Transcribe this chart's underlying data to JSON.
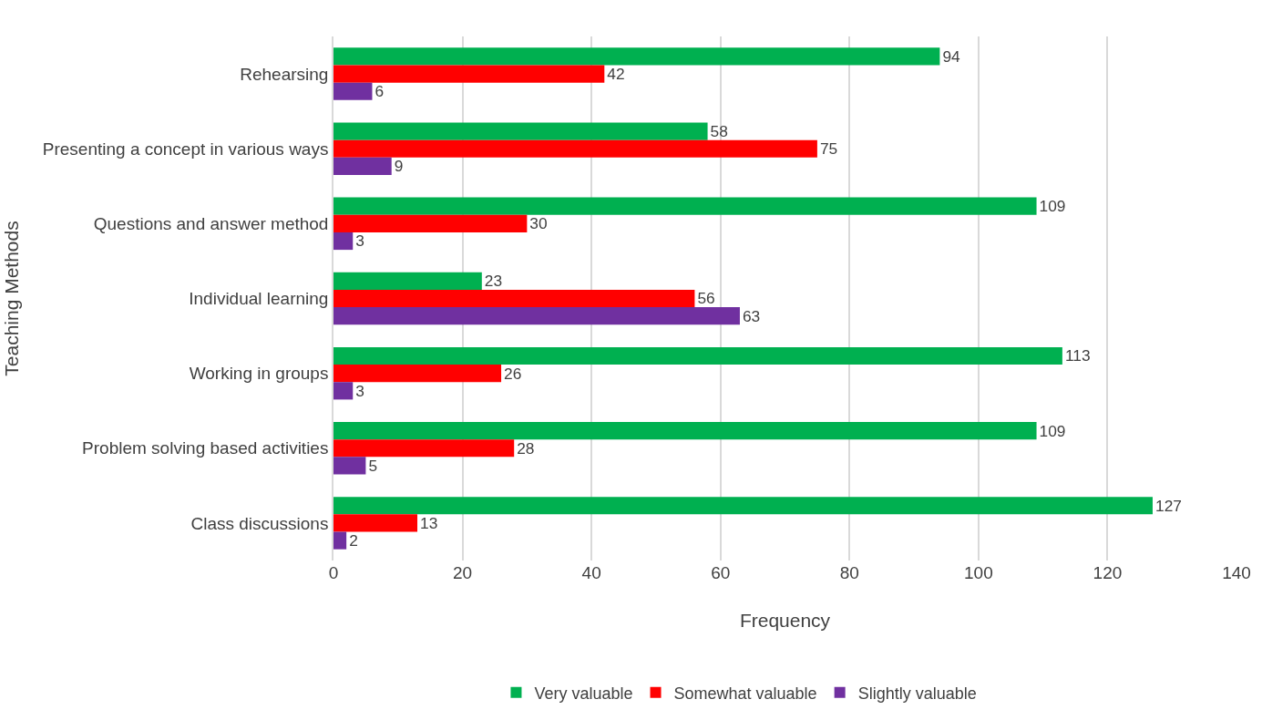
{
  "chart_data": {
    "type": "bar",
    "orientation": "horizontal",
    "xlabel": "Frequency",
    "ylabel": "Teaching Methods",
    "categories": [
      "Rehearsing",
      "Presenting a concept in various ways",
      "Questions and answer method",
      "Individual learning",
      "Working in groups",
      "Problem solving based activities",
      "Class discussions"
    ],
    "series": [
      {
        "name": "Very valuable",
        "color": "#00b050",
        "values": [
          94,
          58,
          109,
          23,
          113,
          109,
          127
        ]
      },
      {
        "name": "Somewhat valuable",
        "color": "#ff0000",
        "values": [
          42,
          75,
          30,
          56,
          26,
          28,
          13
        ]
      },
      {
        "name": "Slightly valuable",
        "color": "#7030a0",
        "values": [
          6,
          9,
          3,
          63,
          3,
          5,
          2
        ]
      }
    ],
    "xlim": [
      0,
      140
    ],
    "xticks": [
      0,
      20,
      40,
      60,
      80,
      100,
      120,
      140
    ],
    "grid": "x",
    "legend": "bottom",
    "data_labels": true
  }
}
